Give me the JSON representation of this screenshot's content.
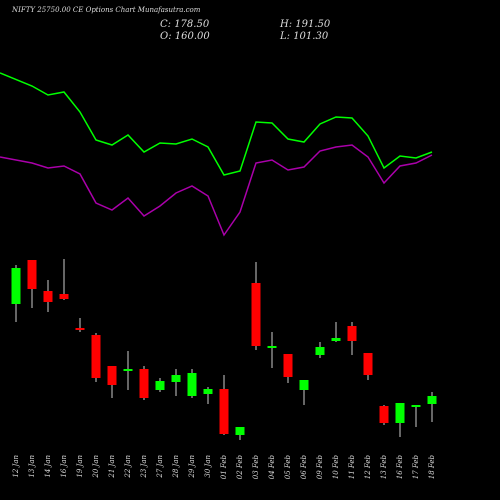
{
  "chart_data": {
    "type": "candlestick",
    "title": "NIFTY 25750.00 CE Options Chart Munafasutra.com",
    "stats": {
      "close": "C: 178.50",
      "high": "H: 191.50",
      "open": "O: 160.00",
      "low": "L: 101.30"
    },
    "categories": [
      "12 Jan",
      "13 Jan",
      "14 Jan",
      "16 Jan",
      "19 Jan",
      "20 Jan",
      "21 Jan",
      "22 Jan",
      "23 Jan",
      "27 Jan",
      "28 Jan",
      "29 Jan",
      "30 Jan",
      "01 Feb",
      "02 Feb",
      "03 Feb",
      "04 Feb",
      "05 Feb",
      "06 Feb",
      "09 Feb",
      "10 Feb",
      "11 Feb",
      "12 Feb",
      "13 Feb",
      "16 Feb",
      "17 Feb",
      "18 Feb"
    ],
    "open": [
      196,
      240,
      209,
      206,
      172,
      165,
      134,
      129,
      131,
      110,
      118,
      104,
      106,
      111,
      65,
      217,
      152,
      146,
      110,
      145,
      159,
      174,
      147,
      94,
      77,
      93,
      96
    ],
    "high": [
      235,
      240,
      220,
      241,
      182,
      167,
      134,
      149,
      134,
      122,
      131,
      131,
      113,
      125,
      73,
      238,
      168,
      146,
      120,
      158,
      178,
      178,
      147,
      95,
      97,
      95,
      108
    ],
    "low": [
      178,
      192,
      188,
      200,
      168,
      118,
      102,
      110,
      100,
      108,
      104,
      102,
      96,
      65,
      60,
      150,
      132,
      117,
      95,
      142,
      158,
      145,
      120,
      75,
      63,
      73,
      78
    ],
    "close": [
      232,
      211,
      198,
      201,
      170,
      122,
      115,
      131,
      102,
      119,
      125,
      127,
      111,
      66,
      73,
      154,
      154,
      123,
      120,
      153,
      162,
      159,
      125,
      77,
      97,
      95,
      104
    ],
    "up_color": "#00ff00",
    "down_color": "#ff0000",
    "lines": [
      {
        "color": "#00ff00",
        "values": [
          427,
          414,
          405,
          408,
          388,
          360,
          355,
          365,
          348,
          357,
          356,
          361,
          353,
          325,
          329,
          378,
          377,
          361,
          358,
          376,
          383,
          382,
          364,
          332,
          344,
          342,
          348
        ]
      },
      {
        "color": "#aa00aa",
        "values": [
          343,
          337,
          332,
          334,
          326,
          297,
          290,
          302,
          284,
          294,
          307,
          314,
          304,
          265,
          288,
          337,
          340,
          330,
          333,
          349,
          353,
          355,
          343,
          317,
          334,
          337,
          345
        ]
      }
    ],
    "ylim": [
      0,
      500
    ]
  }
}
